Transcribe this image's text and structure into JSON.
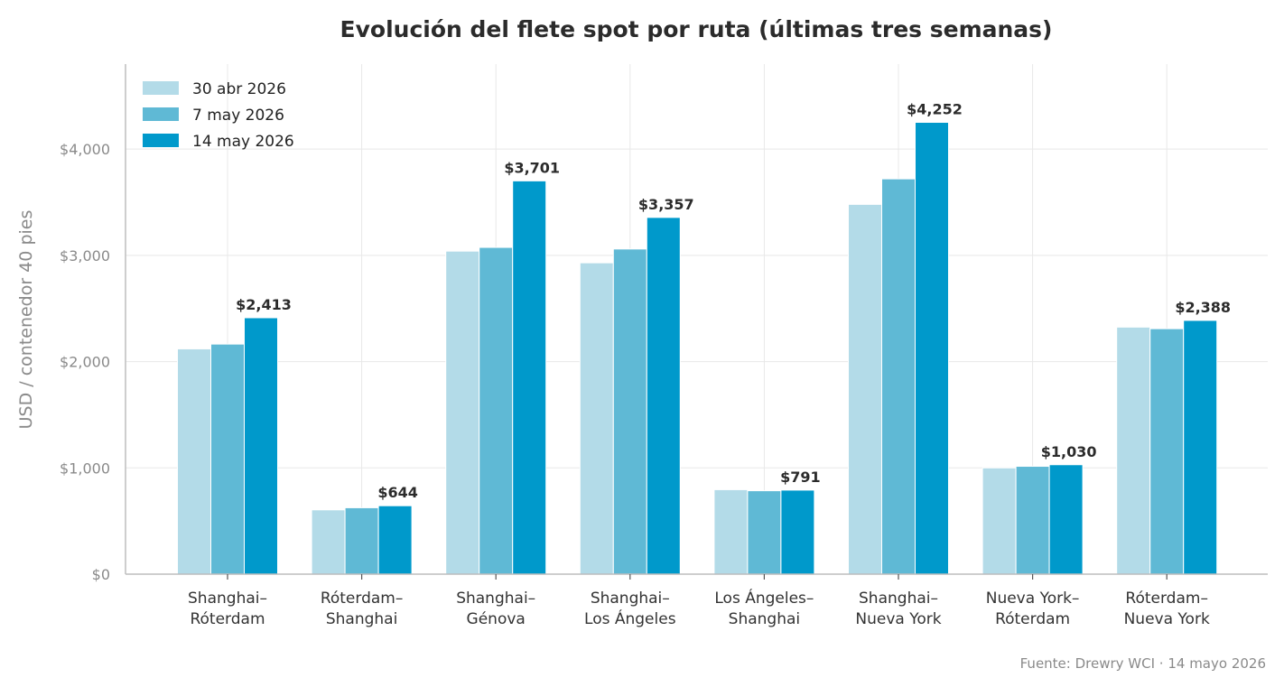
{
  "chart_data": {
    "type": "bar",
    "title": "Evolución del flete spot por ruta (últimas tres semanas)",
    "ylabel": "USD / contenedor 40 pies",
    "xlabel": "",
    "ylim": [
      0,
      4800
    ],
    "yticks": [
      0,
      1000,
      2000,
      3000,
      4000
    ],
    "ytick_labels": [
      "$0",
      "$1,000",
      "$2,000",
      "$3,000",
      "$4,000"
    ],
    "grid": true,
    "legend_position": "top-left",
    "categories": [
      [
        "Shanghai–",
        "Róterdam"
      ],
      [
        "Róterdam–",
        "Shanghai"
      ],
      [
        "Shanghai–",
        "Génova"
      ],
      [
        "Shanghai–",
        "Los Ángeles"
      ],
      [
        "Los Ángeles–",
        "Shanghai"
      ],
      [
        "Shanghai–",
        "Nueva York"
      ],
      [
        "Nueva York–",
        "Róterdam"
      ],
      [
        "Róterdam–",
        "Nueva York"
      ]
    ],
    "series": [
      {
        "name": "30 abr 2026",
        "color": "#b3dbe8",
        "values": [
          2120,
          605,
          3040,
          2930,
          795,
          3480,
          1000,
          2325
        ]
      },
      {
        "name": "7 may 2026",
        "color": "#5fb9d5",
        "values": [
          2165,
          625,
          3075,
          3060,
          785,
          3720,
          1015,
          2310
        ]
      },
      {
        "name": "14 may 2026",
        "color": "#0099cb",
        "values": [
          2413,
          644,
          3701,
          3357,
          791,
          4252,
          1030,
          2388
        ]
      }
    ],
    "data_labels": [
      "$2,413",
      "$644",
      "$3,701",
      "$3,357",
      "$791",
      "$4,252",
      "$1,030",
      "$2,388"
    ],
    "source": "Fuente: Drewry WCI · 14 mayo 2026"
  }
}
